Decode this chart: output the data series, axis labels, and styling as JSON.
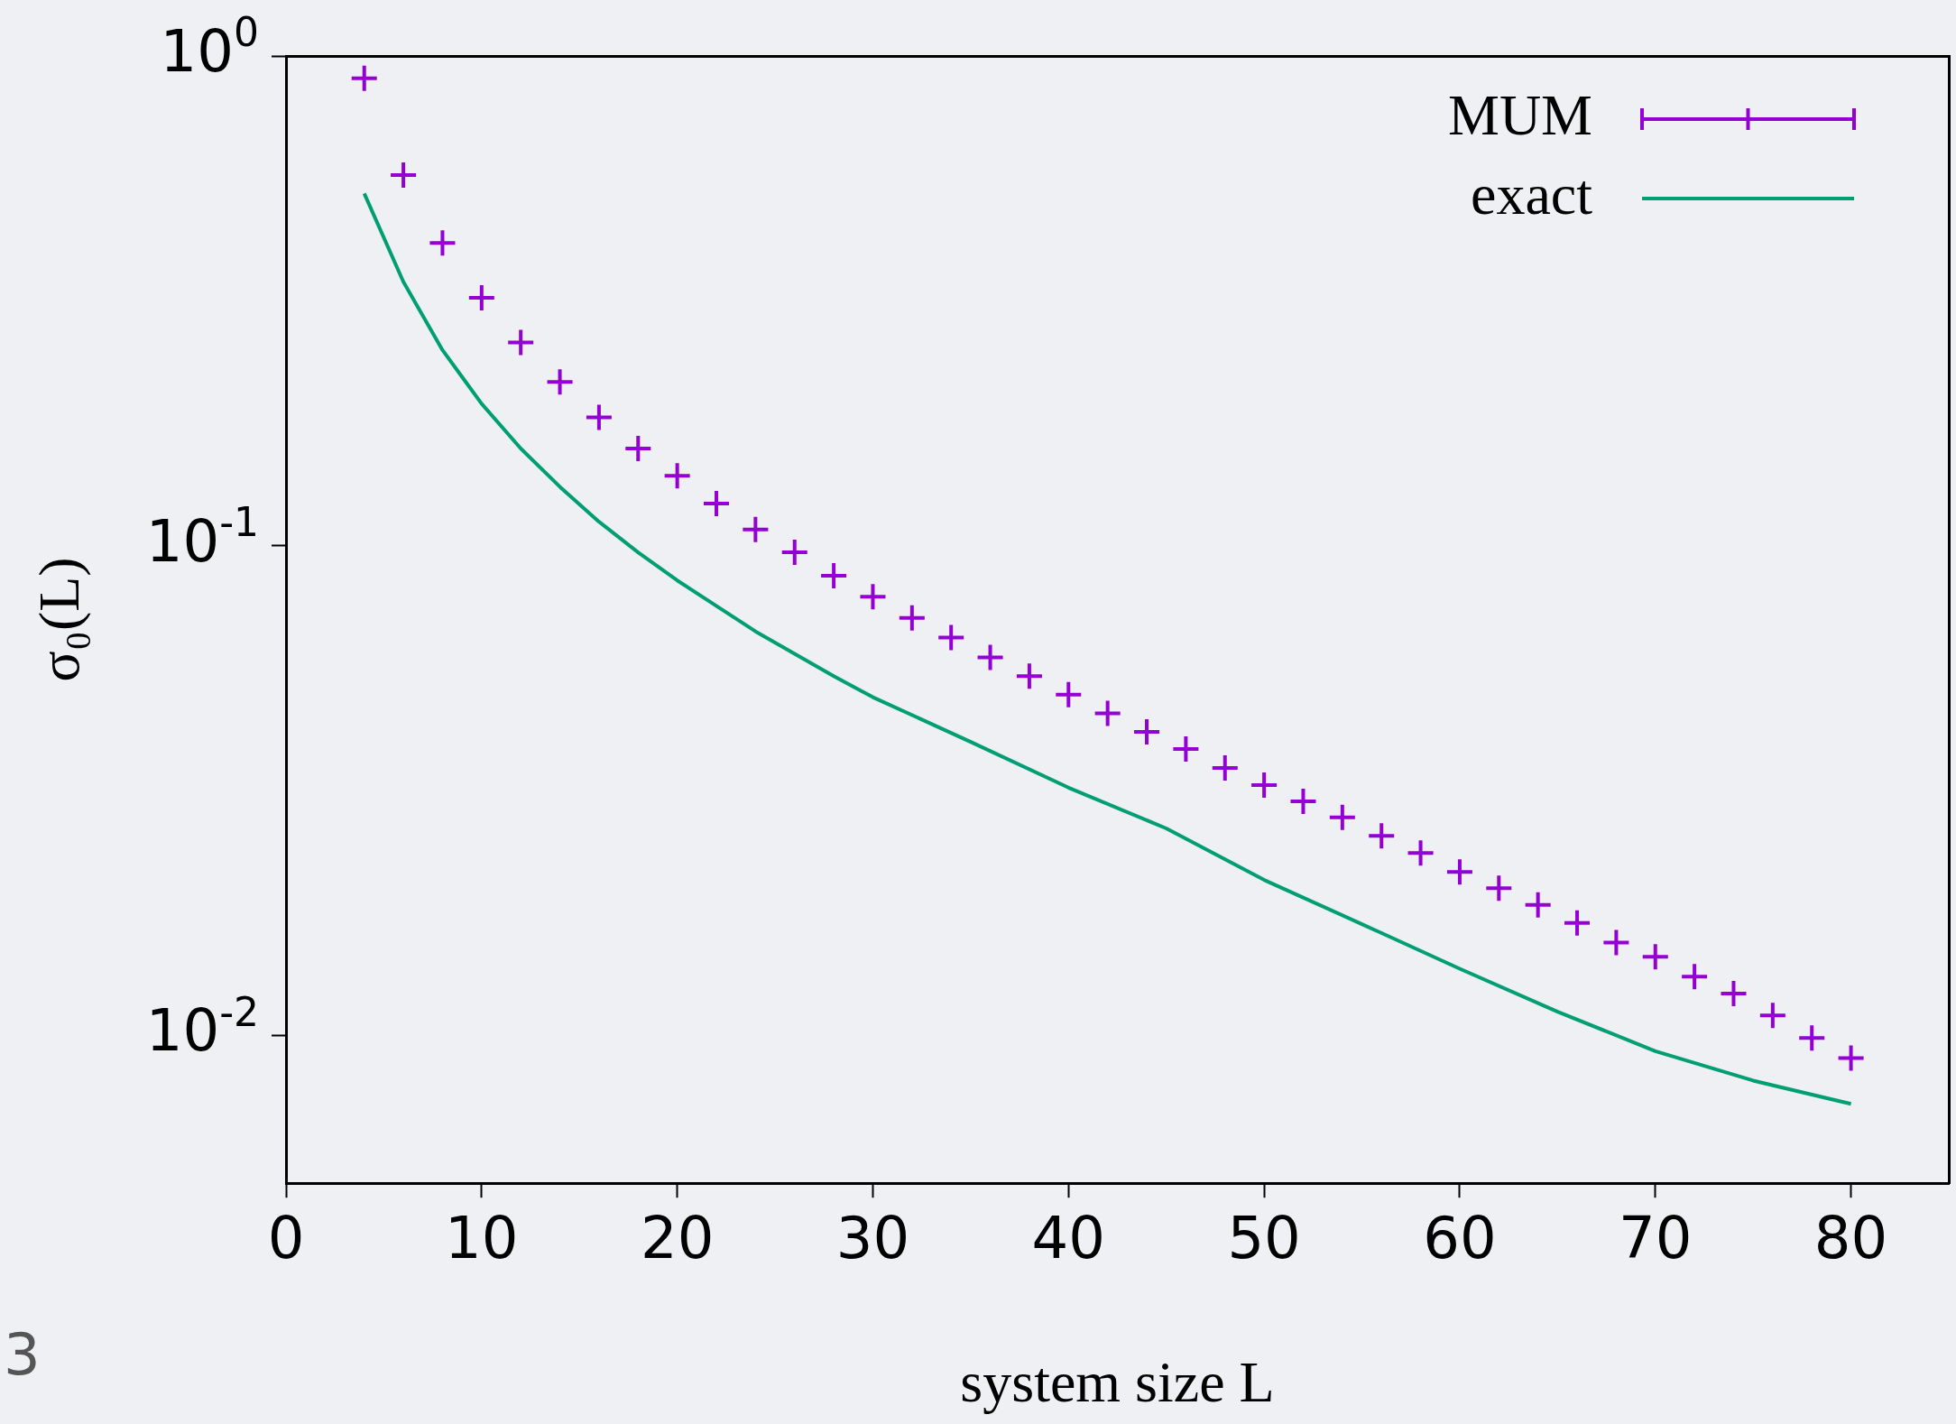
{
  "chart_data": {
    "type": "scatter",
    "xlabel": "system size L",
    "ylabel": "σ₀(L)",
    "log": "y",
    "grid": false,
    "legend": "top right",
    "marker": "cross",
    "xlim": [
      0,
      85
    ],
    "xticks": [
      0,
      10,
      20,
      30,
      40,
      50,
      60,
      70,
      80
    ],
    "ylim": [
      0.005,
      1
    ],
    "yticks": [
      {
        "value": 0.01,
        "label": "10$^{-2}$"
      },
      {
        "value": 0.1,
        "label": "10$^{-1}$"
      },
      {
        "value": 1,
        "label": "10$^{0}$"
      }
    ],
    "annotations": [
      "3"
    ],
    "series": [
      {
        "name": "MUM",
        "type": "scatter",
        "color": "#9400d3",
        "x": [
          4,
          6,
          8,
          10,
          12,
          14,
          16,
          18,
          20,
          22,
          24,
          26,
          28,
          30,
          32,
          34,
          36,
          38,
          40,
          42,
          44,
          46,
          48,
          50,
          52,
          54,
          56,
          58,
          60,
          62,
          64,
          66,
          68,
          70,
          72,
          74,
          76,
          78,
          80
        ],
        "values": [
          0.9,
          0.571,
          0.415,
          0.321,
          0.26,
          0.216,
          0.183,
          0.158,
          0.139,
          0.122,
          0.108,
          0.097,
          0.0869,
          0.0787,
          0.0713,
          0.065,
          0.0592,
          0.0542,
          0.0497,
          0.0455,
          0.0417,
          0.0385,
          0.0352,
          0.0325,
          0.0301,
          0.0279,
          0.0256,
          0.0236,
          0.0216,
          0.02,
          0.0185,
          0.017,
          0.0155,
          0.0145,
          0.0132,
          0.0122,
          0.011,
          0.0099,
          0.009
        ]
      },
      {
        "name": "exact",
        "type": "line",
        "color": "#009e73",
        "marker": "none",
        "line_style": "solid",
        "x": [
          4,
          6,
          8,
          10,
          12,
          14,
          16,
          18,
          20,
          24,
          28,
          30,
          35,
          40,
          45,
          50,
          55,
          60,
          65,
          70,
          75,
          80
        ],
        "values": [
          0.524,
          0.346,
          0.251,
          0.195,
          0.158,
          0.132,
          0.112,
          0.097,
          0.085,
          0.0669,
          0.0542,
          0.0491,
          0.0398,
          0.0321,
          0.0265,
          0.0208,
          0.0169,
          0.0137,
          0.0112,
          0.0093,
          0.0081,
          0.00726
        ]
      }
    ]
  }
}
